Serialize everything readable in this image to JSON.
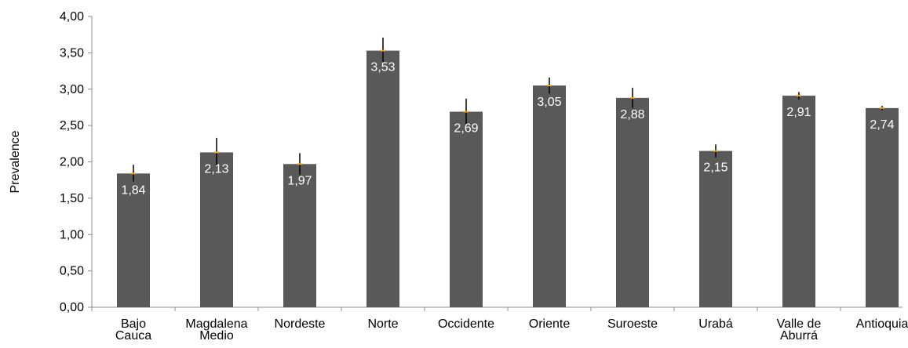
{
  "chart_data": {
    "type": "bar",
    "title": "",
    "xlabel": "",
    "ylabel": "Prevalence",
    "ylim": [
      0,
      4
    ],
    "y_ticks": [
      "0,00",
      "0,50",
      "1,00",
      "1,50",
      "2,00",
      "2,50",
      "3,00",
      "3,50",
      "4,00"
    ],
    "categories": [
      [
        "Bajo",
        "Cauca"
      ],
      [
        "Magdalena",
        "Medio"
      ],
      [
        "Nordeste"
      ],
      [
        "Norte"
      ],
      [
        "Occidente"
      ],
      [
        "Oriente"
      ],
      [
        "Suroeste"
      ],
      [
        "Urabá"
      ],
      [
        "Valle de",
        "Aburrá"
      ],
      [
        "Antioquia"
      ]
    ],
    "values": [
      1.84,
      2.13,
      1.97,
      3.53,
      2.69,
      3.05,
      2.88,
      2.15,
      2.91,
      2.74
    ],
    "value_labels": [
      "1,84",
      "2,13",
      "1,97",
      "3,53",
      "2,69",
      "3,05",
      "2,88",
      "2,15",
      "2,91",
      "2,74"
    ],
    "error_low": [
      1.73,
      1.94,
      1.82,
      3.36,
      2.52,
      2.94,
      2.74,
      2.06,
      2.86,
      2.71
    ],
    "error_high": [
      1.96,
      2.33,
      2.12,
      3.71,
      2.87,
      3.16,
      3.02,
      2.24,
      2.96,
      2.77
    ],
    "grid": false,
    "colors": {
      "bar": "#595959",
      "error": "#000000",
      "marker": "#f5a623",
      "axis": "#8c8c8c"
    }
  }
}
